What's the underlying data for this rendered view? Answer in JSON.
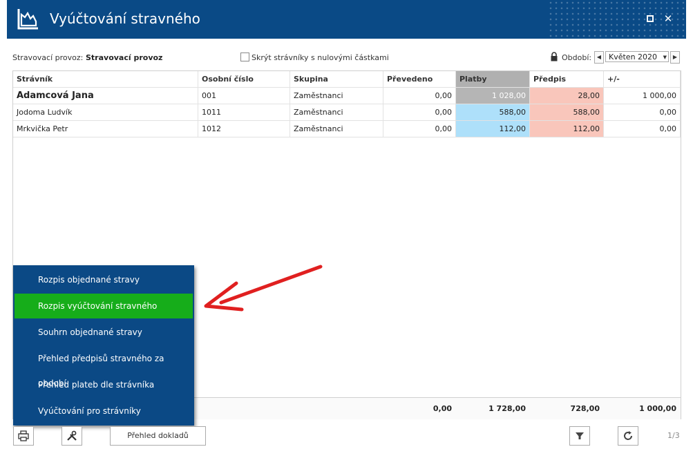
{
  "window": {
    "title": "Vyúčtování stravného",
    "accent": "#0a4a86"
  },
  "filter": {
    "provoz_label": "Stravovací provoz:",
    "provoz_value": "Stravovací provoz",
    "hide_zero_label": "Skrýt strávníky s nulovými částkami",
    "hide_zero_checked": false,
    "period_label": "Období:",
    "period_value": "Květen 2020"
  },
  "table": {
    "columns": [
      "Strávník",
      "Osobní číslo",
      "Skupina",
      "Převedeno",
      "Platby",
      "Předpis",
      "+/-"
    ],
    "rows": [
      {
        "name": "Adamcová Jana",
        "number": "001",
        "group": "Zaměstnanci",
        "transferred": "0,00",
        "payments": "1 028,00",
        "prescription": "28,00",
        "diff": "1 000,00"
      },
      {
        "name": "Jodoma Ludvík",
        "number": "1011",
        "group": "Zaměstnanci",
        "transferred": "0,00",
        "payments": "588,00",
        "prescription": "588,00",
        "diff": "0,00"
      },
      {
        "name": "Mrkvička Petr",
        "number": "1012",
        "group": "Zaměstnanci",
        "transferred": "0,00",
        "payments": "112,00",
        "prescription": "112,00",
        "diff": "0,00"
      }
    ],
    "totals": {
      "transferred": "0,00",
      "payments": "1 728,00",
      "prescription": "728,00",
      "diff": "1 000,00"
    }
  },
  "menu": {
    "items": [
      "Rozpis objednané stravy",
      "Rozpis vyúčtování stravného",
      "Souhrn objednané stravy",
      "Přehled předpisů stravného za období",
      "Přehled plateb dle strávníka",
      "Vyúčtování pro strávníky"
    ],
    "active_index": 1
  },
  "toolbar": {
    "documents_label": "Přehled dokladů",
    "pager": "1/3"
  },
  "colors": {
    "payments_bg": "#aee0fa",
    "payments_selected_bg": "#b5b5b5",
    "prescription_bg": "#f9c6bb",
    "menu_bg": "#0b4985",
    "menu_active": "#16ad1a",
    "arrow": "#e02020"
  },
  "icons": {
    "app": "report-icon",
    "restore": "restore-icon",
    "close": "close-icon",
    "lock": "lock-icon",
    "print": "print-icon",
    "tools": "tools-icon",
    "filter": "filter-icon",
    "refresh": "refresh-icon"
  }
}
